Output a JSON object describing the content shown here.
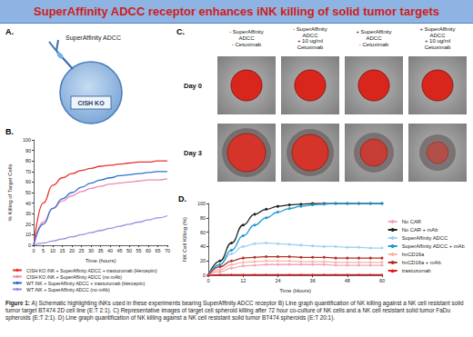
{
  "banner": {
    "title": "SuperAffinity ADCC receptor enhances iNK killing of solid tumor targets"
  },
  "panel_labels": [
    "A.",
    "B.",
    "C.",
    "D."
  ],
  "panel_a": {
    "receptor_label": "SuperAffinity ADCC",
    "cell_label": "CISH KO"
  },
  "panel_c": {
    "columns": [
      [
        "- SuperAffinity",
        "ADCC",
        "- Cetuximab"
      ],
      [
        "- SuperAffinity",
        "ADCC",
        "+ 10 ug/ml",
        "Cetuximab"
      ],
      [
        "+ SuperAffinity",
        "ADCC",
        "- Cetuximab"
      ],
      [
        "+ SuperAffinity",
        "ADCC",
        "+ 10 ug/ml",
        "Cetuximab"
      ]
    ],
    "rows": [
      "Day 0",
      "Day 3"
    ]
  },
  "caption": {
    "label": "Figure 1:",
    "text": "A) Schematic highlighting iNKs used in these experiments bearing SuperAffinity ADCC receptor B) Line graph quantification of NK killing against a NK cell resistant solid tumor target BT474 2D cell line (E:T 2:1). C) Representative images of target cell spheroid killing after 72 hour co-culture of NK cells and a NK cell resistant solid tumor FaDu spheroids (E:T 2:1). D) Line graph quantification of NK killing against a NK cell resistant solid tumor BT474 spheroids (E:T 20:1)."
  },
  "chart_data": [
    {
      "type": "line",
      "x_label": "Time (hours)",
      "y_label": "% Killing of Target Cells",
      "x": [
        0,
        5,
        10,
        15,
        20,
        25,
        30,
        35,
        40,
        45,
        50,
        55,
        60,
        65,
        70
      ],
      "xlim": [
        0,
        70
      ],
      "xticks": [
        0,
        5,
        10,
        15,
        20,
        25,
        30,
        35,
        40,
        45,
        50,
        55,
        60,
        65,
        70
      ],
      "ylim": [
        0,
        100
      ],
      "yticks": [
        0,
        10,
        20,
        30,
        40,
        50,
        60,
        70,
        80,
        90,
        100
      ],
      "grid": false,
      "legend": "bottom",
      "series": [
        {
          "name": "CISH KO iNK + SuperAffinity ADCC + trastuzumab (Herceptin)",
          "color": "#e8332e",
          "marker": "none",
          "line_style": "solid",
          "values": [
            0,
            40,
            57,
            64,
            68,
            71,
            73,
            75,
            76,
            77,
            78,
            79,
            79,
            80,
            80
          ]
        },
        {
          "name": "CISH KO iNK + SuperAffinity ADCC (no mAb)",
          "color": "#f08cb4",
          "marker": "none",
          "line_style": "solid",
          "values": [
            0,
            22,
            35,
            42,
            47,
            51,
            54,
            56,
            58,
            59,
            60,
            61,
            62,
            62,
            63
          ]
        },
        {
          "name": "WT iNK + SuperAffinity ADCC + trastuzumab (Herceptin)",
          "color": "#2f6fd0",
          "marker": "none",
          "line_style": "solid",
          "values": [
            0,
            20,
            35,
            44,
            50,
            55,
            59,
            62,
            64,
            66,
            67,
            68,
            69,
            70,
            70
          ]
        },
        {
          "name": "WT iNK + SuperAffinity ADCC (no mAb)",
          "color": "#9b8fe0",
          "marker": "none",
          "line_style": "solid",
          "values": [
            0,
            2,
            4,
            6,
            8,
            10,
            12,
            14,
            16,
            18,
            20,
            22,
            24,
            26,
            28
          ]
        }
      ]
    },
    {
      "type": "line",
      "x_label": "Time (Hours)",
      "y_label": "NK Cell Killing (%)",
      "x": [
        0,
        4,
        8,
        12,
        16,
        20,
        24,
        28,
        32,
        36,
        40,
        44,
        48,
        52,
        56,
        60
      ],
      "xlim": [
        0,
        60
      ],
      "xticks": [
        0,
        12,
        24,
        36,
        48,
        60
      ],
      "ylim": [
        0,
        100
      ],
      "yticks": [
        0,
        20,
        40,
        60,
        80,
        100
      ],
      "grid": false,
      "legend": "right",
      "series": [
        {
          "name": "No CAR",
          "color": "#f4a6b8",
          "marker": "circle",
          "line_style": "solid",
          "values": [
            0,
            5,
            10,
            13,
            14,
            15,
            15,
            15,
            15,
            15,
            15,
            14,
            14,
            14,
            14,
            14
          ]
        },
        {
          "name": "No CAR + mAb",
          "color": "#222222",
          "marker": "circle",
          "line_style": "solid",
          "values": [
            0,
            20,
            45,
            70,
            85,
            92,
            96,
            98,
            99,
            100,
            100,
            100,
            100,
            100,
            100,
            100
          ]
        },
        {
          "name": "SuperAffinity ADCC",
          "color": "#9fd3ef",
          "marker": "circle",
          "line_style": "solid",
          "values": [
            0,
            15,
            30,
            40,
            44,
            45,
            44,
            43,
            42,
            41,
            40,
            40,
            39,
            39,
            38,
            38
          ]
        },
        {
          "name": "SuperAffinity ADCC + mAb",
          "color": "#1f9ad6",
          "marker": "circle",
          "line_style": "solid",
          "values": [
            0,
            15,
            35,
            55,
            70,
            80,
            88,
            93,
            96,
            98,
            99,
            100,
            100,
            100,
            100,
            100
          ]
        },
        {
          "name": "hnCD16a",
          "color": "#f7b6a8",
          "marker": "circle",
          "line_style": "solid",
          "values": [
            0,
            8,
            15,
            18,
            19,
            20,
            20,
            20,
            19,
            19,
            19,
            18,
            18,
            18,
            18,
            18
          ]
        },
        {
          "name": "hnCD16a + mAb",
          "color": "#b5302a",
          "marker": "circle",
          "line_style": "solid",
          "values": [
            0,
            12,
            20,
            24,
            25,
            26,
            26,
            26,
            25,
            25,
            25,
            24,
            24,
            24,
            24,
            24
          ]
        },
        {
          "name": "trastuzumab",
          "color": "#e31a1c",
          "marker": "triangle",
          "line_style": "solid",
          "values": [
            0,
            1,
            1,
            1,
            1,
            1,
            1,
            1,
            1,
            1,
            1,
            1,
            1,
            1,
            1,
            1
          ]
        }
      ]
    }
  ]
}
